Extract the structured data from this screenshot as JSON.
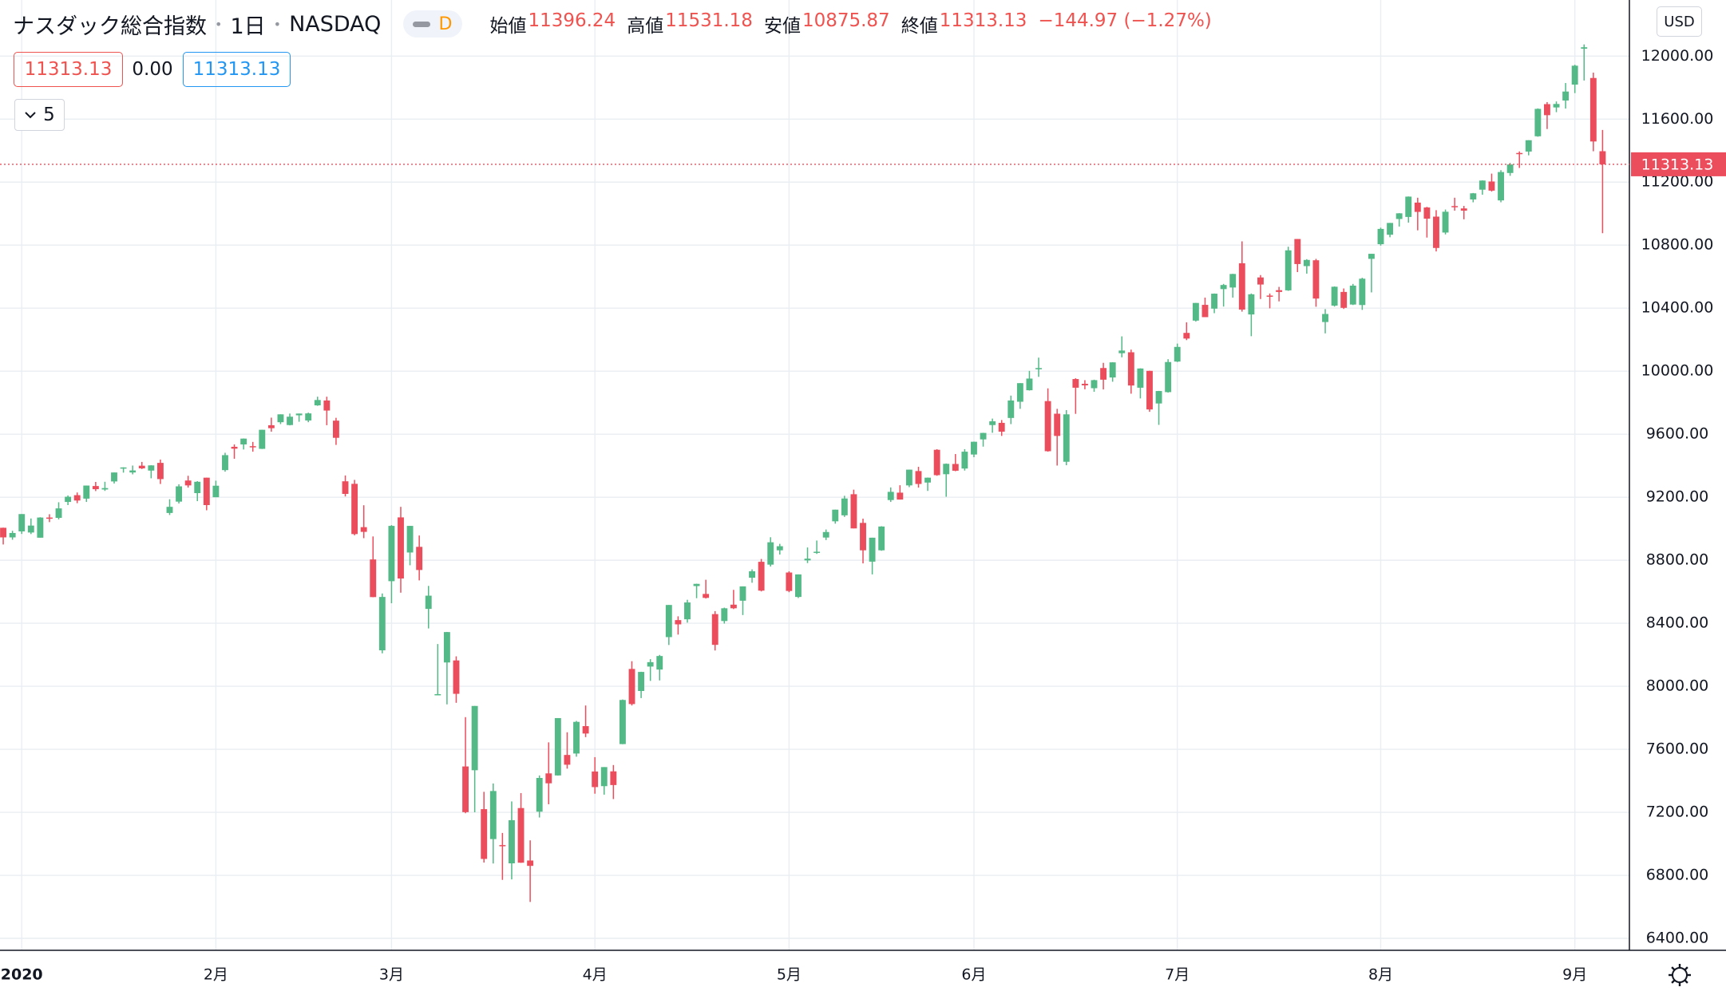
{
  "header": {
    "symbol": "ナスダック総合指数",
    "interval": "1日",
    "exchange": "NASDAQ",
    "badge": "D",
    "open_label": "始値",
    "high_label": "高値",
    "low_label": "安値",
    "close_label": "終値",
    "change": "−144.97 (−1.27%)",
    "spread": "0.00",
    "indicator_count": "5",
    "currency": "USD"
  },
  "chart_data": {
    "type": "candlestick",
    "up_color": "#53b987",
    "down_color": "#eb4d5c",
    "grid": true,
    "ylim": [
      6324,
      12356
    ],
    "xlim": [
      -0.35,
      175.9
    ],
    "yticks": [
      {
        "value": 6400,
        "label": "6400.00"
      },
      {
        "value": 6800,
        "label": "6800.00"
      },
      {
        "value": 7200,
        "label": "7200.00"
      },
      {
        "value": 7600,
        "label": "7600.00"
      },
      {
        "value": 8000,
        "label": "8000.00"
      },
      {
        "value": 8400,
        "label": "8400.00"
      },
      {
        "value": 8800,
        "label": "8800.00"
      },
      {
        "value": 9200,
        "label": "9200.00"
      },
      {
        "value": 9600,
        "label": "9600.00"
      },
      {
        "value": 10000,
        "label": "10000.00"
      },
      {
        "value": 10400,
        "label": "10400.00"
      },
      {
        "value": 10800,
        "label": "10800.00"
      },
      {
        "value": 11200,
        "label": "11200.00"
      },
      {
        "value": 11600,
        "label": "11600.00"
      },
      {
        "value": 12000,
        "label": "12000.00"
      }
    ],
    "xticks": [
      {
        "value": 2,
        "label": "2020"
      },
      {
        "value": 23,
        "label": "2月"
      },
      {
        "value": 42,
        "label": "3月"
      },
      {
        "value": 64,
        "label": "4月"
      },
      {
        "value": 85,
        "label": "5月"
      },
      {
        "value": 105,
        "label": "6月"
      },
      {
        "value": 127,
        "label": "7月"
      },
      {
        "value": 149,
        "label": "8月"
      },
      {
        "value": 170,
        "label": "9月"
      }
    ],
    "candles": [
      [
        9006,
        9007,
        8900,
        8945
      ],
      [
        8945,
        8987,
        8930,
        8973
      ],
      [
        8983,
        9093,
        8967,
        9093
      ],
      [
        8976,
        9065,
        8966,
        9020
      ],
      [
        8943,
        9073,
        8943,
        9071
      ],
      [
        9071,
        9092,
        9042,
        9068
      ],
      [
        9069,
        9168,
        9059,
        9129
      ],
      [
        9170,
        9211,
        9150,
        9203
      ],
      [
        9213,
        9230,
        9162,
        9179
      ],
      [
        9191,
        9274,
        9170,
        9274
      ],
      [
        9271,
        9297,
        9239,
        9251
      ],
      [
        9249,
        9298,
        9240,
        9258
      ],
      [
        9300,
        9357,
        9287,
        9357
      ],
      [
        9386,
        9390,
        9356,
        9389
      ],
      [
        9357,
        9401,
        9345,
        9370
      ],
      [
        9400,
        9424,
        9379,
        9383
      ],
      [
        9369,
        9403,
        9320,
        9402
      ],
      [
        9418,
        9439,
        9284,
        9315
      ],
      [
        9100,
        9187,
        9087,
        9139
      ],
      [
        9172,
        9282,
        9160,
        9269
      ],
      [
        9306,
        9336,
        9261,
        9275
      ],
      [
        9226,
        9302,
        9175,
        9298
      ],
      [
        9324,
        9324,
        9117,
        9150
      ],
      [
        9200,
        9305,
        9200,
        9273
      ],
      [
        9372,
        9482,
        9362,
        9467
      ],
      [
        9520,
        9535,
        9444,
        9508
      ],
      [
        9535,
        9573,
        9503,
        9572
      ],
      [
        9524,
        9551,
        9489,
        9520
      ],
      [
        9507,
        9628,
        9506,
        9628
      ],
      [
        9657,
        9705,
        9616,
        9638
      ],
      [
        9676,
        9726,
        9664,
        9726
      ],
      [
        9658,
        9731,
        9656,
        9711
      ],
      [
        9720,
        9731,
        9679,
        9731
      ],
      [
        9687,
        9737,
        9676,
        9732
      ],
      [
        9783,
        9838,
        9780,
        9817
      ],
      [
        9814,
        9838,
        9657,
        9750
      ],
      [
        9686,
        9704,
        9532,
        9577
      ],
      [
        9301,
        9338,
        9205,
        9221
      ],
      [
        9285,
        9310,
        8958,
        8966
      ],
      [
        9010,
        9149,
        8940,
        8980
      ],
      [
        8805,
        8951,
        8565,
        8566
      ],
      [
        8228,
        8589,
        8209,
        8567
      ],
      [
        8667,
        9023,
        8527,
        9018
      ],
      [
        9072,
        9139,
        8594,
        8684
      ],
      [
        8849,
        9018,
        8768,
        9018
      ],
      [
        8885,
        8957,
        8672,
        8738
      ],
      [
        8491,
        8637,
        8367,
        8575
      ],
      [
        7948,
        8268,
        7944,
        7950
      ],
      [
        8151,
        8345,
        7885,
        8344
      ],
      [
        8164,
        8190,
        7895,
        7952
      ],
      [
        7491,
        7804,
        7194,
        7201
      ],
      [
        7467,
        7875,
        7200,
        7875
      ],
      [
        7220,
        7330,
        6881,
        6904
      ],
      [
        7030,
        7383,
        6875,
        7335
      ],
      [
        6992,
        7069,
        6771,
        6989
      ],
      [
        6876,
        7269,
        6774,
        7150
      ],
      [
        7227,
        7322,
        6879,
        6880
      ],
      [
        6894,
        7022,
        6631,
        6860
      ],
      [
        7204,
        7434,
        7167,
        7418
      ],
      [
        7447,
        7644,
        7251,
        7384
      ],
      [
        7434,
        7798,
        7433,
        7798
      ],
      [
        7564,
        7708,
        7477,
        7502
      ],
      [
        7573,
        7780,
        7553,
        7774
      ],
      [
        7747,
        7878,
        7677,
        7700
      ],
      [
        7459,
        7550,
        7318,
        7360
      ],
      [
        7366,
        7487,
        7312,
        7487
      ],
      [
        7460,
        7500,
        7284,
        7373
      ],
      [
        7633,
        7916,
        7632,
        7913
      ],
      [
        8110,
        8159,
        7878,
        7887
      ],
      [
        7970,
        8092,
        7925,
        8091
      ],
      [
        8125,
        8172,
        8034,
        8153
      ],
      [
        8106,
        8199,
        8037,
        8192
      ],
      [
        8312,
        8516,
        8262,
        8516
      ],
      [
        8420,
        8444,
        8328,
        8393
      ],
      [
        8425,
        8549,
        8404,
        8532
      ],
      [
        8636,
        8651,
        8559,
        8650
      ],
      [
        8586,
        8676,
        8557,
        8561
      ],
      [
        8458,
        8477,
        8227,
        8263
      ],
      [
        8414,
        8499,
        8398,
        8495
      ],
      [
        8518,
        8612,
        8490,
        8495
      ],
      [
        8543,
        8634,
        8452,
        8634
      ],
      [
        8689,
        8742,
        8657,
        8730
      ],
      [
        8790,
        8808,
        8602,
        8607
      ],
      [
        8772,
        8946,
        8760,
        8914
      ],
      [
        8863,
        8904,
        8836,
        8889
      ],
      [
        8722,
        8730,
        8597,
        8605
      ],
      [
        8567,
        8710,
        8560,
        8710
      ],
      [
        8799,
        8881,
        8782,
        8810
      ],
      [
        8852,
        8925,
        8840,
        8854
      ],
      [
        8944,
        8995,
        8928,
        8979
      ],
      [
        9047,
        9121,
        9032,
        9121
      ],
      [
        9085,
        9209,
        9075,
        9192
      ],
      [
        9219,
        9248,
        9002,
        9002
      ],
      [
        9037,
        9064,
        8780,
        8863
      ],
      [
        8791,
        8943,
        8710,
        8943
      ],
      [
        8863,
        9016,
        8860,
        9014
      ],
      [
        9182,
        9262,
        9170,
        9234
      ],
      [
        9229,
        9276,
        9185,
        9185
      ],
      [
        9275,
        9375,
        9264,
        9375
      ],
      [
        9366,
        9393,
        9261,
        9284
      ],
      [
        9293,
        9325,
        9240,
        9324
      ],
      [
        9501,
        9505,
        9336,
        9340
      ],
      [
        9346,
        9414,
        9203,
        9412
      ],
      [
        9411,
        9474,
        9365,
        9368
      ],
      [
        9382,
        9505,
        9369,
        9489
      ],
      [
        9471,
        9553,
        9454,
        9552
      ],
      [
        9567,
        9609,
        9521,
        9608
      ],
      [
        9658,
        9699,
        9609,
        9682
      ],
      [
        9672,
        9690,
        9589,
        9616
      ],
      [
        9703,
        9845,
        9664,
        9814
      ],
      [
        9806,
        9924,
        9761,
        9924
      ],
      [
        9879,
        10002,
        9877,
        9953
      ],
      [
        10012,
        10086,
        9964,
        10020
      ],
      [
        9810,
        9891,
        9489,
        9492
      ],
      [
        9730,
        9761,
        9401,
        9589
      ],
      [
        9425,
        9753,
        9403,
        9726
      ],
      [
        9950,
        9955,
        9729,
        9895
      ],
      [
        9920,
        9943,
        9885,
        9910
      ],
      [
        9892,
        9946,
        9869,
        9943
      ],
      [
        10020,
        10053,
        9884,
        9946
      ],
      [
        9960,
        10057,
        9933,
        10056
      ],
      [
        10114,
        10221,
        10088,
        10131
      ],
      [
        10120,
        10137,
        9857,
        9909
      ],
      [
        9895,
        10018,
        9827,
        10017
      ],
      [
        10002,
        10003,
        9742,
        9757
      ],
      [
        9795,
        9875,
        9659,
        9874
      ],
      [
        9867,
        10076,
        9864,
        10058
      ],
      [
        10061,
        10175,
        10058,
        10154
      ],
      [
        10243,
        10310,
        10197,
        10207
      ],
      [
        10321,
        10433,
        10315,
        10433
      ],
      [
        10421,
        10467,
        10343,
        10343
      ],
      [
        10397,
        10493,
        10368,
        10492
      ],
      [
        10521,
        10554,
        10410,
        10547
      ],
      [
        10531,
        10618,
        10467,
        10617
      ],
      [
        10685,
        10824,
        10378,
        10391
      ],
      [
        10360,
        10493,
        10222,
        10488
      ],
      [
        10595,
        10610,
        10458,
        10550
      ],
      [
        10480,
        10493,
        10399,
        10473
      ],
      [
        10514,
        10535,
        10443,
        10503
      ],
      [
        10513,
        10790,
        10510,
        10767
      ],
      [
        10839,
        10839,
        10629,
        10680
      ],
      [
        10667,
        10711,
        10619,
        10706
      ],
      [
        10704,
        10713,
        10409,
        10461
      ],
      [
        10312,
        10394,
        10240,
        10363
      ],
      [
        10416,
        10538,
        10410,
        10536
      ],
      [
        10503,
        10525,
        10395,
        10402
      ],
      [
        10423,
        10554,
        10420,
        10543
      ],
      [
        10420,
        10593,
        10389,
        10587
      ],
      [
        10713,
        10745,
        10500,
        10745
      ],
      [
        10806,
        10911,
        10797,
        10903
      ],
      [
        10866,
        10941,
        10850,
        10941
      ],
      [
        10966,
        11003,
        10918,
        11002
      ],
      [
        10979,
        11109,
        10943,
        11108
      ],
      [
        11070,
        11101,
        10894,
        11011
      ],
      [
        11039,
        11043,
        10848,
        10968
      ],
      [
        10981,
        11022,
        10760,
        10782
      ],
      [
        10880,
        11026,
        10868,
        11012
      ],
      [
        11048,
        11101,
        11019,
        11042
      ],
      [
        11033,
        11049,
        10964,
        11019
      ],
      [
        11090,
        11131,
        11072,
        11129
      ],
      [
        11152,
        11211,
        11120,
        11210
      ],
      [
        11204,
        11254,
        11140,
        11146
      ],
      [
        11084,
        11276,
        11072,
        11264
      ],
      [
        11258,
        11322,
        11240,
        11312
      ],
      [
        11385,
        11395,
        11290,
        11380
      ],
      [
        11394,
        11466,
        11370,
        11466
      ],
      [
        11491,
        11668,
        11488,
        11665
      ],
      [
        11695,
        11708,
        11537,
        11625
      ],
      [
        11674,
        11712,
        11644,
        11696
      ],
      [
        11718,
        11829,
        11667,
        11775
      ],
      [
        11819,
        11945,
        11765,
        11939
      ],
      [
        12047,
        12074,
        11845,
        12056
      ],
      [
        11861,
        11895,
        11396,
        11458
      ],
      [
        11396.24,
        11531.18,
        10875.87,
        11313.13
      ]
    ]
  }
}
